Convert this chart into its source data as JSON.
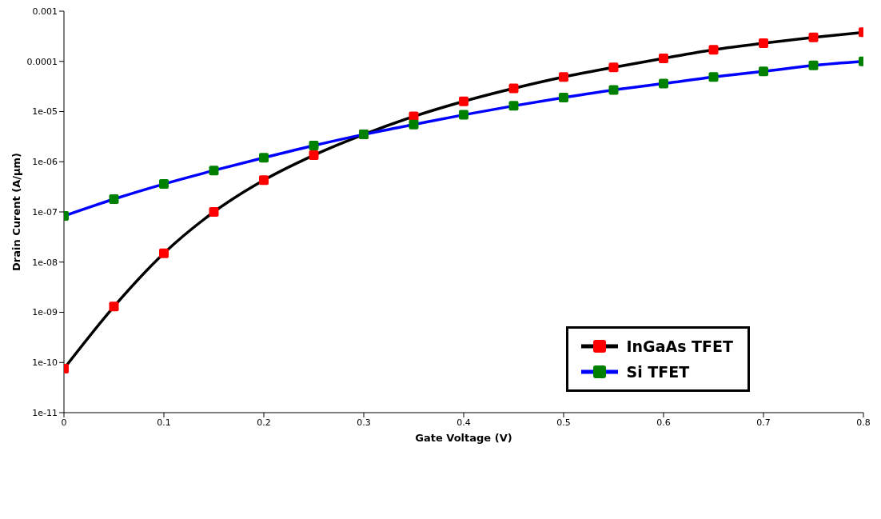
{
  "chart_data": {
    "type": "line",
    "xlabel": "Gate Voltage (V)",
    "ylabel": "Drain Curent (A/μm)",
    "x": [
      0,
      0.05,
      0.1,
      0.15,
      0.2,
      0.25,
      0.3,
      0.35,
      0.4,
      0.45,
      0.5,
      0.55,
      0.6,
      0.65,
      0.7,
      0.75,
      0.8
    ],
    "series": [
      {
        "name": "InGaAs TFET",
        "color": "#000000",
        "colors": [
          "#ff0000",
          "#ff0000",
          "#ff0000",
          "#ff0000",
          "#ff0000",
          "#ff0000",
          "#ff0000",
          "#ff0000",
          "#ff0000",
          "#ff0000",
          "#ff0000",
          "#ff0000",
          "#ff0000",
          "#ff0000",
          "#ff0000",
          "#ff0000",
          "#ff0000"
        ],
        "values": [
          7.5e-11,
          1.3e-09,
          1.5e-08,
          1e-07,
          4.3e-07,
          1.35e-06,
          3.5e-06,
          8e-06,
          1.6e-05,
          2.9e-05,
          4.9e-05,
          7.6e-05,
          0.000115,
          0.00017,
          0.00023,
          0.0003,
          0.00038
        ]
      },
      {
        "name": "Si TFET",
        "color": "#0000ff",
        "colors": [
          "#008000",
          "#008000",
          "#008000",
          "#008000",
          "#008000",
          "#008000",
          "#008000",
          "#008000",
          "#008000",
          "#008000",
          "#008000",
          "#008000",
          "#008000",
          "#008000",
          "#008000",
          "#008000",
          "#008000"
        ],
        "values": [
          8.3e-08,
          1.8e-07,
          3.6e-07,
          6.7e-07,
          1.2e-06,
          2.1e-06,
          3.5e-06,
          5.5e-06,
          8.6e-06,
          1.3e-05,
          1.9e-05,
          2.7e-05,
          3.6e-05,
          4.9e-05,
          6.3e-05,
          8.3e-05,
          0.0001
        ]
      }
    ],
    "log": true,
    "xlim": [
      0,
      0.8
    ],
    "xticks": [
      0,
      0.1,
      0.2,
      0.3,
      0.4,
      0.5,
      0.6,
      0.7,
      0.8
    ],
    "ylim": [
      1e-11,
      0.001
    ],
    "yticks": [
      {
        "value": 1e-11,
        "label": "1e-11"
      },
      {
        "value": 1e-10,
        "label": "1e-10"
      },
      {
        "value": 1e-09,
        "label": "1e-09"
      },
      {
        "value": 1e-08,
        "label": "1e-08"
      },
      {
        "value": 1e-07,
        "label": "1e-07"
      },
      {
        "value": 1e-06,
        "label": "1e-06"
      },
      {
        "value": 1e-05,
        "label": "1e-05"
      },
      {
        "value": 0.0001,
        "label": "0.0001"
      },
      {
        "value": 0.001,
        "label": "0.001"
      }
    ],
    "grid": false,
    "legend": "right",
    "marker": "square",
    "line_style": "solid"
  }
}
